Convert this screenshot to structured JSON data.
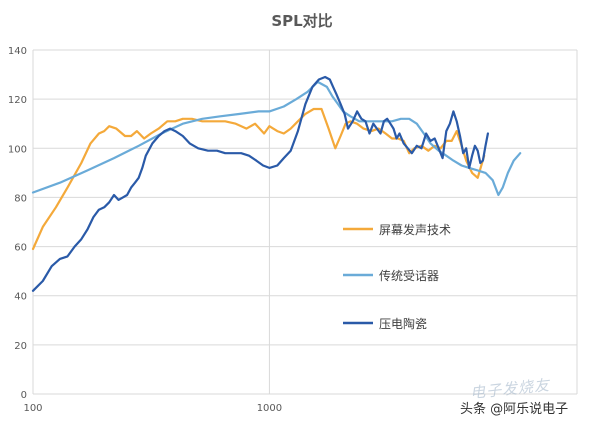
{
  "chart_data": {
    "type": "line",
    "title": "SPL对比",
    "xscale": "log",
    "xlim": [
      100,
      20000
    ],
    "ylim": [
      0,
      140
    ],
    "xticks": [
      100,
      1000
    ],
    "xtick_labels": [
      "100",
      "1000"
    ],
    "yticks": [
      0,
      20,
      40,
      60,
      80,
      100,
      120,
      140
    ],
    "ytick_labels": [
      "0",
      "20",
      "40",
      "60",
      "80",
      "100",
      "120",
      "140"
    ],
    "grid": "horizontal",
    "legend_position": "center-right",
    "series": [
      {
        "name": "屏幕发声技术",
        "color": "#f4a93a",
        "x": [
          100,
          110,
          125,
          140,
          160,
          175,
          190,
          200,
          210,
          225,
          245,
          260,
          275,
          295,
          315,
          340,
          370,
          400,
          430,
          470,
          520,
          580,
          650,
          720,
          800,
          870,
          950,
          1000,
          1080,
          1150,
          1230,
          1320,
          1420,
          1540,
          1660,
          1780,
          1900,
          2000,
          2100,
          2200,
          2350,
          2500,
          2700,
          2900,
          3100,
          3300,
          3500,
          3700,
          3900,
          4100,
          4400,
          4700,
          5000,
          5300,
          5600,
          5900,
          6200,
          6500,
          6800,
          7200,
          7600,
          8100
        ],
        "y": [
          59,
          68,
          76,
          84,
          94,
          102,
          106,
          107,
          109,
          108,
          105,
          105,
          107,
          104,
          106,
          108,
          111,
          111,
          112,
          112,
          111,
          111,
          111,
          110,
          108,
          110,
          106,
          109,
          107,
          106,
          108,
          111,
          114,
          116,
          116,
          108,
          100,
          105,
          110,
          111,
          110,
          108,
          107,
          108,
          106,
          104,
          104,
          103,
          98,
          100,
          101,
          99,
          101,
          100,
          103,
          103,
          107,
          101,
          95,
          90,
          88,
          97
        ]
      },
      {
        "name": "传统受话器",
        "color": "#6aabd8",
        "x": [
          100,
          130,
          170,
          220,
          280,
          350,
          430,
          520,
          620,
          750,
          900,
          1000,
          1150,
          1300,
          1450,
          1600,
          1750,
          1850,
          1950,
          2050,
          2200,
          2400,
          2700,
          3000,
          3300,
          3600,
          3900,
          4200,
          4500,
          4800,
          5200,
          5600,
          6000,
          6500,
          7000,
          7600,
          8200,
          8800,
          9300,
          9700,
          10200,
          10800,
          11500
        ],
        "y": [
          82,
          86,
          91,
          96,
          101,
          106,
          110,
          112,
          113,
          114,
          115,
          115,
          117,
          120,
          123,
          127,
          125,
          121,
          118,
          115,
          113,
          111,
          111,
          111,
          111,
          112,
          112,
          110,
          106,
          102,
          99,
          97,
          95,
          93,
          92,
          91,
          90,
          87,
          81,
          84,
          90,
          95,
          98
        ]
      },
      {
        "name": "压电陶瓷",
        "color": "#2a5aa8",
        "x": [
          100,
          110,
          120,
          130,
          140,
          150,
          160,
          170,
          180,
          190,
          200,
          210,
          220,
          230,
          240,
          250,
          260,
          270,
          280,
          290,
          300,
          320,
          340,
          360,
          380,
          400,
          430,
          460,
          500,
          550,
          600,
          650,
          700,
          760,
          820,
          880,
          940,
          1000,
          1080,
          1150,
          1230,
          1320,
          1420,
          1520,
          1620,
          1720,
          1800,
          1860,
          1920,
          2000,
          2080,
          2150,
          2250,
          2350,
          2450,
          2550,
          2650,
          2750,
          2850,
          2950,
          3050,
          3150,
          3250,
          3350,
          3450,
          3550,
          3700,
          3850,
          4000,
          4200,
          4400,
          4600,
          4800,
          5000,
          5200,
          5400,
          5600,
          5800,
          6000,
          6200,
          6400,
          6600,
          6800,
          7000,
          7200,
          7400,
          7600,
          7800,
          8000,
          8200,
          8400
        ],
        "y": [
          42,
          46,
          52,
          55,
          56,
          60,
          63,
          67,
          72,
          75,
          76,
          78,
          81,
          79,
          80,
          81,
          84,
          86,
          88,
          92,
          97,
          102,
          105,
          107,
          108,
          107,
          105,
          102,
          100,
          99,
          99,
          98,
          98,
          98,
          97,
          95,
          93,
          92,
          93,
          96,
          99,
          107,
          118,
          125,
          128,
          129,
          128,
          125,
          122,
          118,
          114,
          108,
          111,
          115,
          112,
          111,
          106,
          110,
          108,
          106,
          111,
          112,
          110,
          108,
          104,
          106,
          102,
          100,
          98,
          101,
          100,
          106,
          103,
          104,
          100,
          96,
          107,
          110,
          115,
          111,
          105,
          98,
          100,
          92,
          97,
          101,
          99,
          94,
          95,
          101,
          106
        ]
      }
    ]
  },
  "watermark": {
    "logo_text": "电子发烧友",
    "source_text": "头条 @阿乐说电子"
  }
}
